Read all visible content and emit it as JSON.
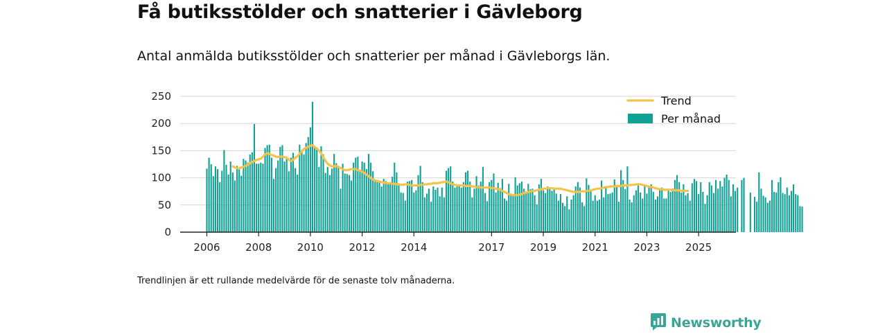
{
  "title": "Få butiksstölder och snatterier i Gävleborg",
  "subtitle": "Antal anmälda butiksstölder och snatterier per månad i Gävleborgs län.",
  "footnote": "Trendlinjen är ett rullande medelvärde för de senaste tolv månaderna.",
  "brand": {
    "name": "Newsworthy",
    "icon": "newsworthy-logo-icon"
  },
  "colors": {
    "bars": "#10a195",
    "trend": "#f5c24a",
    "grid": "#d6d6d6",
    "axis": "#222222",
    "brand": "#3aa597"
  },
  "chart_data": {
    "type": "bar",
    "title": "",
    "xlabel": "",
    "ylabel": "",
    "ylim": [
      0,
      250
    ],
    "yticks": [
      "0",
      "50",
      "100",
      "150",
      "200",
      "250"
    ],
    "xticks": [
      {
        "label": "2006",
        "year": 2006
      },
      {
        "label": "2008",
        "year": 2008
      },
      {
        "label": "2010",
        "year": 2010
      },
      {
        "label": "2012",
        "year": 2012
      },
      {
        "label": "2014",
        "year": 2014
      },
      {
        "label": "2017",
        "year": 2017
      },
      {
        "label": "2019",
        "year": 2019
      },
      {
        "label": "2021",
        "year": 2021
      },
      {
        "label": "2023",
        "year": 2023
      },
      {
        "label": "2025",
        "year": 2025
      }
    ],
    "grid": true,
    "legend_position": "top-right",
    "start": "2006-01",
    "series": [
      {
        "name": "Per månad",
        "type": "bar",
        "values": [
          117,
          137,
          125,
          103,
          121,
          116,
          92,
          113,
          151,
          124,
          106,
          130,
          110,
          95,
          122,
          118,
          104,
          135,
          132,
          128,
          143,
          147,
          199,
          126,
          126,
          128,
          126,
          155,
          160,
          161,
          137,
          98,
          118,
          132,
          157,
          160,
          130,
          136,
          112,
          137,
          146,
          118,
          106,
          161,
          151,
          143,
          164,
          175,
          193,
          240,
          158,
          152,
          120,
          158,
          143,
          109,
          120,
          105,
          117,
          144,
          127,
          122,
          80,
          126,
          108,
          107,
          105,
          95,
          128,
          137,
          139,
          113,
          130,
          128,
          116,
          144,
          128,
          112,
          95,
          96,
          92,
          84,
          98,
          94,
          90,
          92,
          102,
          128,
          110,
          86,
          73,
          72,
          58,
          93,
          94,
          96,
          73,
          77,
          105,
          122,
          92,
          64,
          71,
          80,
          56,
          84,
          78,
          82,
          66,
          82,
          64,
          113,
          118,
          121,
          93,
          82,
          86,
          87,
          82,
          92,
          110,
          113,
          93,
          64,
          80,
          103,
          86,
          93,
          120,
          72,
          57,
          92,
          96,
          108,
          73,
          91,
          81,
          98,
          62,
          58,
          89,
          69,
          67,
          101,
          86,
          90,
          93,
          80,
          74,
          89,
          79,
          80,
          68,
          51,
          88,
          98,
          77,
          72,
          84,
          80,
          76,
          80,
          71,
          58,
          70,
          54,
          48,
          66,
          42,
          60,
          68,
          84,
          92,
          82,
          55,
          48,
          99,
          87,
          75,
          58,
          68,
          58,
          60,
          95,
          64,
          82,
          70,
          71,
          73,
          97,
          84,
          56,
          114,
          96,
          79,
          121,
          60,
          55,
          68,
          77,
          86,
          73,
          62,
          86,
          71,
          82,
          88,
          74,
          60,
          66,
          80,
          82,
          62,
          62,
          76,
          74,
          80,
          96,
          105,
          92,
          73,
          88,
          68,
          72,
          58,
          90,
          98,
          94,
          70,
          92,
          74,
          52,
          68,
          92,
          86,
          72,
          96,
          80,
          94,
          84,
          100,
          106,
          96,
          66,
          88,
          76,
          82,
          0,
          96,
          100,
          0,
          0,
          73,
          0,
          65,
          56,
          110,
          80,
          67,
          64,
          54,
          58,
          96,
          74,
          73,
          92,
          101,
          72,
          70,
          82,
          68,
          76,
          88,
          70,
          68,
          48,
          47
        ]
      },
      {
        "name": "Trend",
        "type": "line",
        "start": "2007-01",
        "values": [
          121,
          119,
          118,
          117,
          119,
          120,
          122,
          124,
          127,
          129,
          131,
          133,
          134,
          135,
          139,
          143,
          145,
          144,
          142,
          141,
          139,
          138,
          139,
          139,
          138,
          137,
          133,
          131,
          133,
          137,
          140,
          144,
          149,
          153,
          155,
          157,
          159,
          160,
          157,
          154,
          150,
          145,
          138,
          131,
          126,
          123,
          121,
          121,
          122,
          120,
          118,
          116,
          114,
          114,
          115,
          116,
          116,
          116,
          114,
          113,
          111,
          109,
          106,
          103,
          100,
          97,
          95,
          94,
          93,
          92,
          91,
          91,
          90,
          90,
          89,
          89,
          88,
          88,
          87,
          87,
          88,
          88,
          87,
          86,
          86,
          86,
          86,
          87,
          87,
          88,
          88,
          89,
          89,
          90,
          90,
          90,
          91,
          92,
          92,
          93,
          92,
          90,
          88,
          87,
          86,
          86,
          86,
          86,
          85,
          85,
          85,
          84,
          84,
          83,
          83,
          82,
          82,
          82,
          82,
          82,
          81,
          81,
          80,
          79,
          78,
          76,
          74,
          72,
          70,
          69,
          68,
          68,
          68,
          69,
          70,
          72,
          73,
          74,
          75,
          76,
          76,
          77,
          78,
          79,
          80,
          80,
          81,
          81,
          81,
          80,
          80,
          80,
          80,
          79,
          78,
          77,
          76,
          75,
          74,
          74,
          74,
          74,
          75,
          75,
          76,
          76,
          77,
          78,
          79,
          80,
          80,
          81,
          82,
          83,
          83,
          84,
          84,
          84,
          85,
          85,
          85,
          86,
          86,
          86,
          87,
          87,
          87,
          88,
          88,
          88,
          87,
          86,
          85,
          84,
          83,
          82,
          81,
          80,
          79,
          79,
          78,
          78,
          78,
          78,
          77,
          77,
          77,
          77,
          76,
          76,
          76,
          76
        ]
      }
    ]
  }
}
